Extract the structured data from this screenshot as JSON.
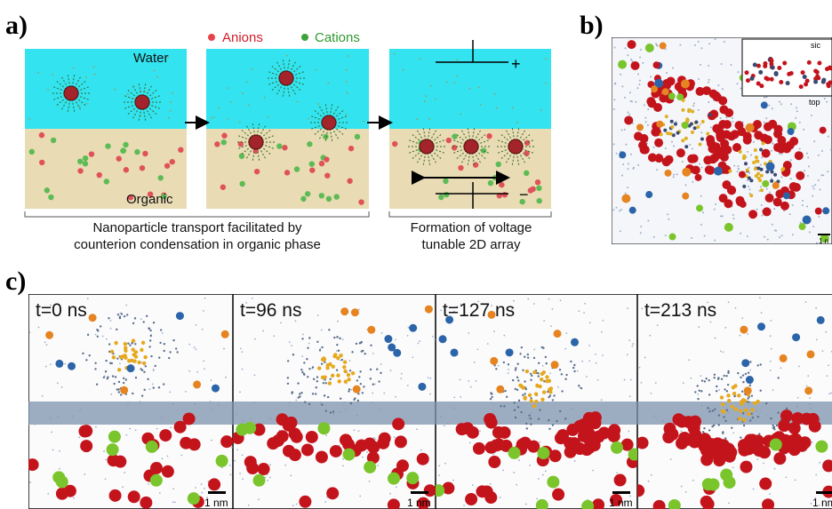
{
  "panels": {
    "a": {
      "label": "a)",
      "legend": [
        "Anions",
        "Cations"
      ],
      "water": "Water",
      "organic": "Organic",
      "caption_left": [
        "Nanoparticle transport facilitated by",
        "counterion condensation in organic phase"
      ],
      "caption_right": [
        "Formation of voltage",
        "tunable 2D array"
      ],
      "plus": "+",
      "minus": "−"
    },
    "b": {
      "label": "b)",
      "inset_side": "sic",
      "inset_top": "top",
      "scale": "1 n"
    },
    "c": {
      "label": "c)",
      "frames": [
        {
          "time": "t=0 ns",
          "scale": "1 nm"
        },
        {
          "time": "t=96 ns",
          "scale": "1 nm"
        },
        {
          "time": "t=127 ns",
          "scale": "1 nm"
        },
        {
          "time": "t=213 ns",
          "scale": "1 nm"
        }
      ]
    }
  }
}
